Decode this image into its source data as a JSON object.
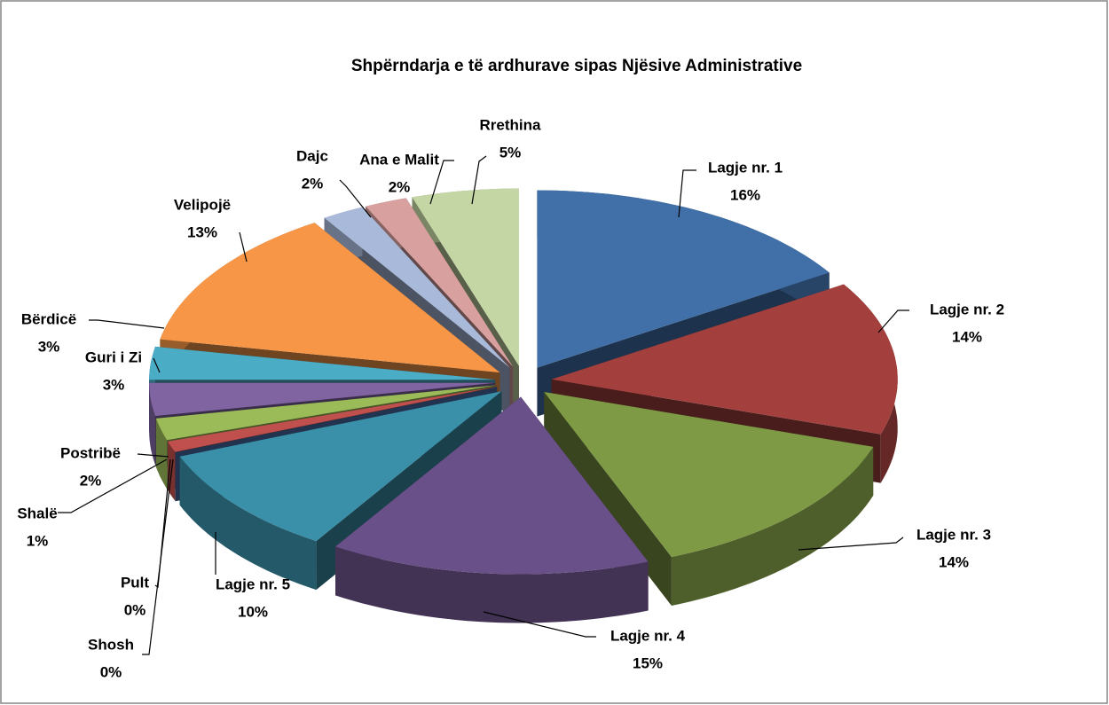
{
  "chart_data": {
    "type": "pie",
    "title": "Shpërndarja e të ardhurave sipas  Njësive Administrative",
    "categories": [
      "Lagje nr. 1",
      "Lagje nr. 2",
      "Lagje nr. 3",
      "Lagje nr. 4",
      "Lagje nr. 5",
      "Shosh",
      "Pult",
      "Shalë",
      "Postribë",
      "Guri i Zi",
      "Bërdicë",
      "Velipojë",
      "Dajc",
      "Ana e Malit",
      "Rrethina"
    ],
    "values": [
      16,
      14,
      14,
      15,
      10,
      0,
      0,
      1,
      2,
      3,
      3,
      13,
      2,
      2,
      5
    ],
    "value_labels": [
      "16%",
      "14%",
      "14%",
      "15%",
      "10%",
      "0%",
      "0%",
      "1%",
      "2%",
      "3%",
      "3%",
      "13%",
      "2%",
      "2%",
      "5%"
    ],
    "colors": [
      "#4170a8",
      "#a3403d",
      "#7f9a45",
      "#6a5088",
      "#3a8fa9",
      "#f0913f",
      "#4a72b0",
      "#c0504d",
      "#9bbb59",
      "#8064a2",
      "#4bacc6",
      "#f79646",
      "#a9b9d9",
      "#d9a0a0",
      "#c4d6a4"
    ]
  }
}
